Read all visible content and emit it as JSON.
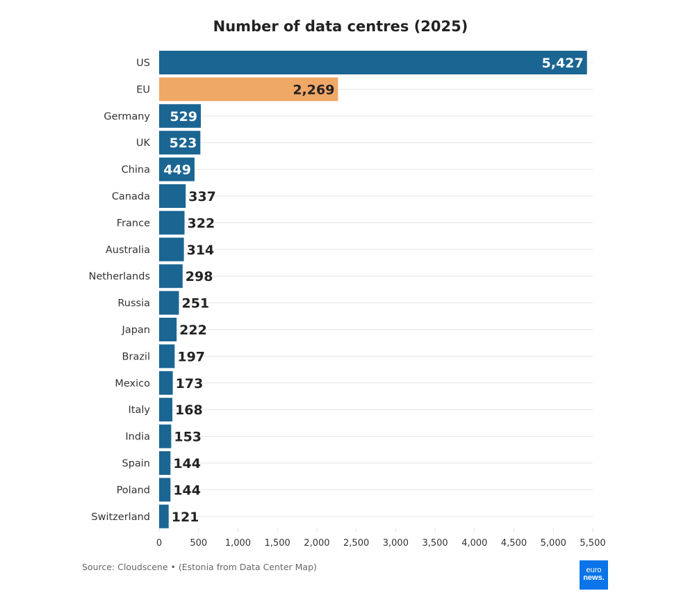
{
  "chart_data": {
    "type": "bar",
    "orientation": "horizontal",
    "title": "Number of data centres (2025)",
    "categories": [
      "US",
      "EU",
      "Germany",
      "UK",
      "China",
      "Canada",
      "France",
      "Australia",
      "Netherlands",
      "Russia",
      "Japan",
      "Brazil",
      "Mexico",
      "Italy",
      "India",
      "Spain",
      "Poland",
      "Switzerland"
    ],
    "values": [
      5427,
      2269,
      529,
      523,
      449,
      337,
      322,
      314,
      298,
      251,
      222,
      197,
      173,
      168,
      153,
      144,
      144,
      121
    ],
    "value_labels": [
      "5,427",
      "2,269",
      "529",
      "523",
      "449",
      "337",
      "322",
      "314",
      "298",
      "251",
      "222",
      "197",
      "173",
      "168",
      "153",
      "144",
      "144",
      "121"
    ],
    "highlight_category": "EU",
    "xlim": [
      0,
      5500
    ],
    "xticks": [
      0,
      500,
      1000,
      1500,
      2000,
      2500,
      3000,
      3500,
      4000,
      4500,
      5000,
      5500
    ],
    "xtick_labels": [
      "0",
      "500",
      "1,000",
      "1,500",
      "2,000",
      "2,500",
      "3,000",
      "3,500",
      "4,000",
      "4,500",
      "5,000",
      "5,500"
    ],
    "grid": true,
    "colors": {
      "default": "#1b6592",
      "highlight": "#f0a866"
    }
  },
  "source": "Source: Cloudscene • (Estonia from Data Center Map)",
  "logo": {
    "line1": "euro",
    "line2": "news."
  }
}
